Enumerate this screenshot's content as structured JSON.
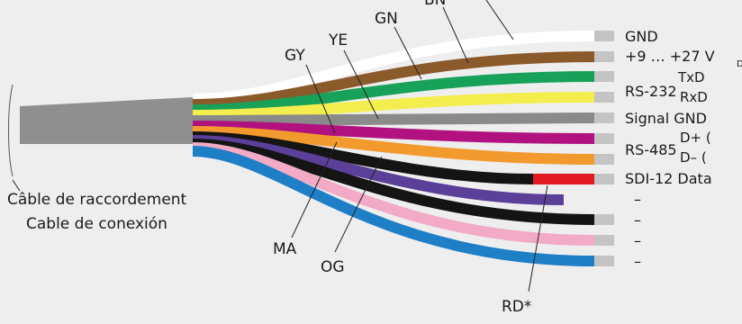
{
  "cable": {
    "label_fr": "Câble de raccordement",
    "label_es": "Cable de conexión"
  },
  "wire_codes": {
    "bn": "BN",
    "gn": "GN",
    "ye": "YE",
    "gy": "GY",
    "ma": "MA",
    "og": "OG",
    "rd": "RD*"
  },
  "signals": {
    "gnd": "GND",
    "power": "+9 … +27 V",
    "rs232_group": "RS-232",
    "txd": "TxD",
    "rxd": "RxD",
    "signal_gnd": "Signal GND",
    "rs485_group": "RS-485",
    "d_plus": "D+ (",
    "d_minus": "D– (",
    "sdi12": "SDI-12 Data",
    "unused_1": "–",
    "unused_2": "–",
    "unused_3": "–",
    "unused_4": "–"
  },
  "colors": {
    "background": "#eeeeef",
    "jacket": "#8f8f8f",
    "white": "#ffffff",
    "brown": "#8b5a2b",
    "green": "#18a159",
    "yellow": "#f3ee4d",
    "grey": "#8a8a8a",
    "magenta": "#b1127f",
    "orange": "#f39a2e",
    "black": "#141414",
    "red": "#e21b22",
    "violet": "#5b3f98",
    "pink": "#f2aac6",
    "blue": "#1f7fc6"
  }
}
